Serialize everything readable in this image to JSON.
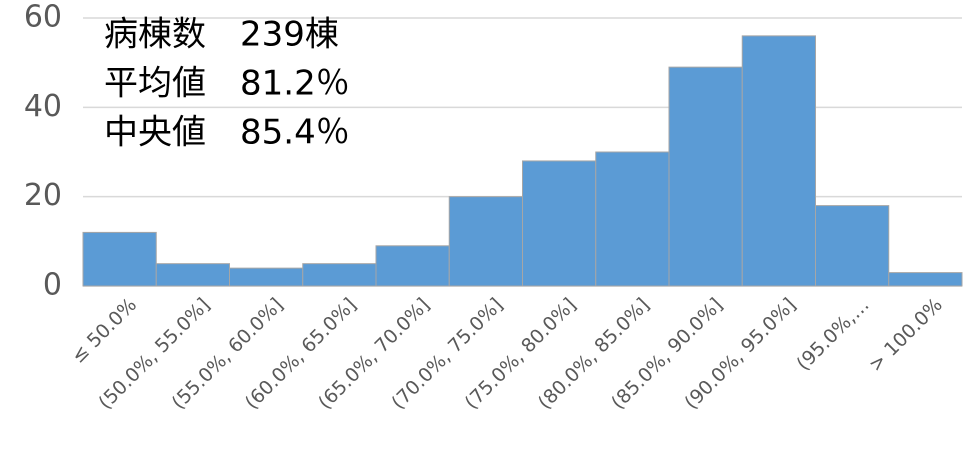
{
  "chart_data": {
    "type": "bar",
    "annotations": [
      "病棟数　239棟",
      "平均値　81.2％",
      "中央値　85.4％"
    ],
    "categories": [
      "≤ 50.0%",
      "(50.0%, 55.0%]",
      "(55.0%, 60.0%]",
      "(60.0%, 65.0%]",
      "(65.0%, 70.0%]",
      "(70.0%, 75.0%]",
      "(75.0%, 80.0%]",
      "(80.0%, 85.0%]",
      "(85.0%, 90.0%]",
      "(90.0%, 95.0%]",
      "(95.0%,…",
      "> 100.0%"
    ],
    "values": [
      12,
      5,
      4,
      5,
      9,
      20,
      28,
      30,
      49,
      56,
      18,
      3
    ],
    "color": "#5b9bd5",
    "ylim": [
      0,
      60
    ],
    "yticks": [
      0,
      20,
      40,
      60
    ],
    "grid": true
  }
}
